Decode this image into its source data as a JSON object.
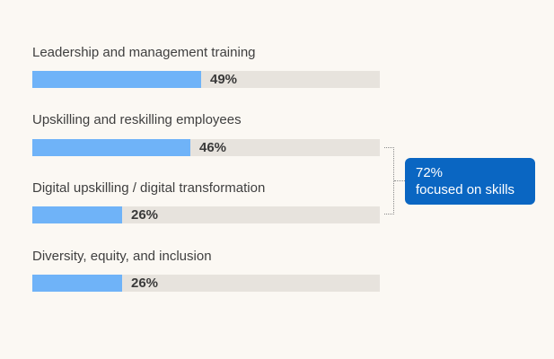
{
  "chart_data": {
    "type": "bar",
    "orientation": "horizontal",
    "categories": [
      "Leadership and management training",
      "Upskilling and reskilling employees",
      "Digital upskilling / digital transformation",
      "Diversity, equity, and inclusion"
    ],
    "values": [
      49,
      46,
      26,
      26
    ],
    "value_labels": [
      "49%",
      "46%",
      "26%",
      "26%"
    ],
    "xlim": [
      0,
      100
    ],
    "grid": false,
    "annotations": [
      {
        "text_line1": "72%",
        "text_line2": "focused on skills",
        "groups": [
          "Upskilling and reskilling employees",
          "Digital upskilling / digital transformation"
        ]
      }
    ],
    "colors": {
      "bar": "#6fb3f8",
      "track": "#e7e3dd",
      "callout": "#0a66c2",
      "background": "#fbf8f3"
    }
  }
}
